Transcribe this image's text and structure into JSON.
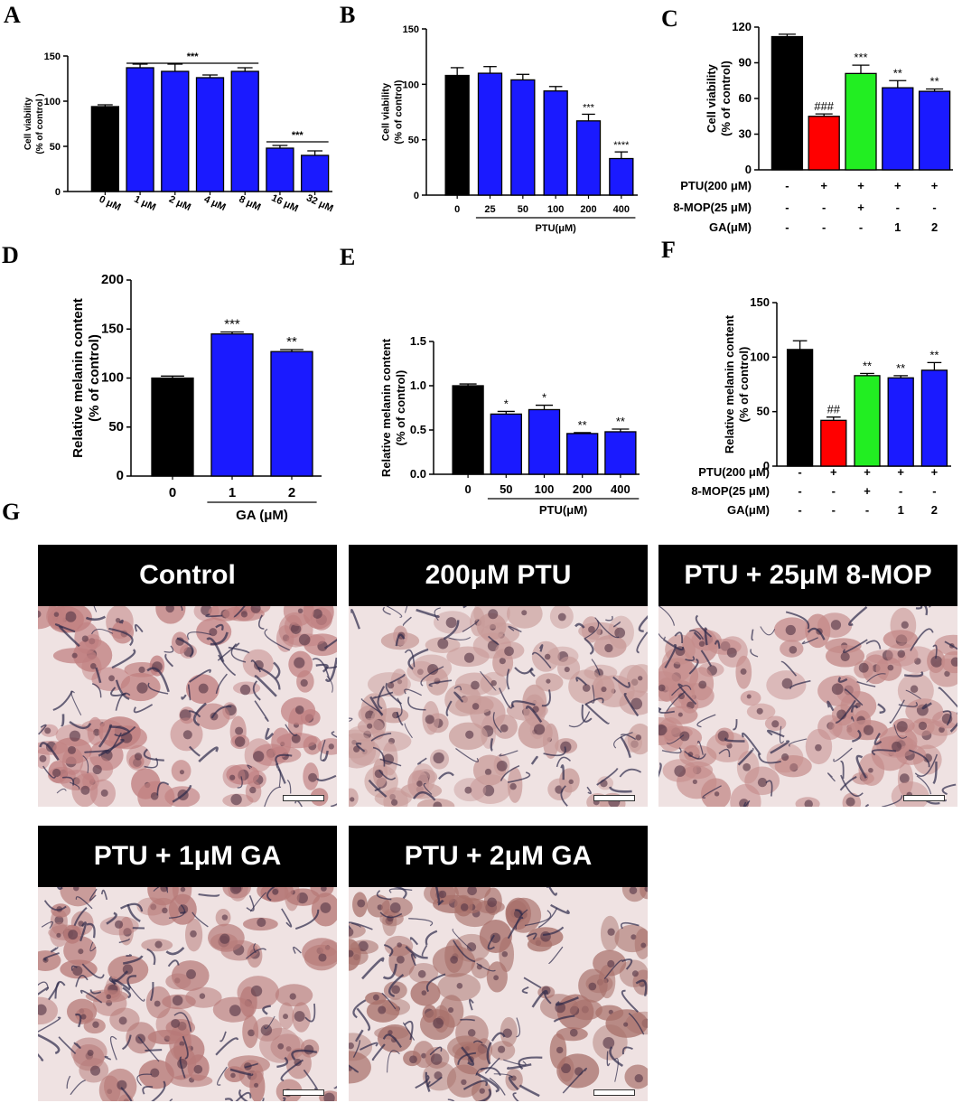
{
  "panel_letters": [
    "A",
    "B",
    "C",
    "D",
    "E",
    "F",
    "G"
  ],
  "colors": {
    "blue": "#1a1aff",
    "black": "#000000",
    "red": "#ff0000",
    "green": "#22ee22"
  },
  "chart_data": [
    {
      "id": "A",
      "type": "bar",
      "ylabel": "Cell viability\n(% of control )",
      "ylim": [
        0,
        150
      ],
      "yticks": [
        0,
        50,
        100,
        150
      ],
      "categories": [
        "0 μM",
        "1 μM",
        "2 μM",
        "4 μM",
        "8 μM",
        "16 μM",
        "32 μM"
      ],
      "values": [
        94,
        137,
        133,
        126,
        133,
        48,
        40
      ],
      "errors": [
        2,
        4,
        8,
        3,
        4,
        3,
        5
      ],
      "colors": [
        "black",
        "blue",
        "blue",
        "blue",
        "blue",
        "blue",
        "blue"
      ],
      "annotations": [
        {
          "text": "***",
          "from": 1,
          "to": 4,
          "value": 142
        },
        {
          "text": "***",
          "from": 5,
          "to": 6,
          "value": 55
        }
      ],
      "bar_labels": [
        "",
        "",
        "",
        "",
        "",
        "",
        ""
      ]
    },
    {
      "id": "B",
      "type": "bar",
      "ylabel": "Cell viability\n(% of control)",
      "ylim": [
        0,
        150
      ],
      "yticks": [
        0,
        50,
        100,
        150
      ],
      "categories": [
        "0",
        "25",
        "50",
        "100",
        "200",
        "400"
      ],
      "values": [
        108,
        110,
        104,
        94,
        67,
        33
      ],
      "errors": [
        7,
        6,
        5,
        4,
        6,
        6
      ],
      "colors": [
        "black",
        "blue",
        "blue",
        "blue",
        "blue",
        "blue"
      ],
      "bar_labels": [
        "",
        "",
        "",
        "",
        "***",
        "****"
      ],
      "group_label": "PTU(μM)",
      "group_from": 1,
      "group_to": 5
    },
    {
      "id": "C",
      "type": "bar",
      "ylabel": "Cell viability\n(% of control)",
      "ylim": [
        0,
        120
      ],
      "yticks": [
        0,
        30,
        60,
        90,
        120
      ],
      "categories": [
        "",
        "",
        "",
        "",
        ""
      ],
      "values": [
        112,
        45,
        81,
        69,
        66
      ],
      "errors": [
        2,
        2,
        7,
        6,
        2
      ],
      "colors": [
        "black",
        "red",
        "green",
        "blue",
        "blue"
      ],
      "bar_labels": [
        "",
        "###",
        "***",
        "**",
        "**"
      ],
      "table": [
        {
          "label": "PTU(200 μM)",
          "cells": [
            "-",
            "+",
            "+",
            "+",
            "+"
          ]
        },
        {
          "label": "8-MOP(25 μM)",
          "cells": [
            "-",
            "-",
            "+",
            "-",
            "-"
          ]
        },
        {
          "label": "GA(μM)",
          "cells": [
            "-",
            "-",
            "-",
            "1",
            "2"
          ]
        }
      ]
    },
    {
      "id": "D",
      "type": "bar",
      "ylabel": "Relative melanin content\n(% of control)",
      "ylim": [
        0,
        200
      ],
      "yticks": [
        0,
        50,
        100,
        150,
        200
      ],
      "categories": [
        "0",
        "1",
        "2"
      ],
      "values": [
        100,
        145,
        127
      ],
      "errors": [
        2,
        2,
        2
      ],
      "colors": [
        "black",
        "blue",
        "blue"
      ],
      "bar_labels": [
        "",
        "***",
        "**"
      ],
      "group_label": "GA (μM)",
      "group_from": 1,
      "group_to": 2
    },
    {
      "id": "E",
      "type": "bar",
      "ylabel": "Relative melanin content\n(% of control)",
      "ylim": [
        0,
        1.5
      ],
      "yticks": [
        "0.0",
        "0.5",
        "1.0",
        "1.5"
      ],
      "categories": [
        "0",
        "50",
        "100",
        "200",
        "400"
      ],
      "values": [
        1.0,
        0.68,
        0.73,
        0.46,
        0.48
      ],
      "errors": [
        0.02,
        0.03,
        0.05,
        0.01,
        0.03
      ],
      "colors": [
        "black",
        "blue",
        "blue",
        "blue",
        "blue"
      ],
      "bar_labels": [
        "",
        "*",
        "*",
        "**",
        "**"
      ],
      "group_label": "PTU(μM)",
      "group_from": 1,
      "group_to": 4
    },
    {
      "id": "F",
      "type": "bar",
      "ylabel": "Relative melanin content\n(% of control)",
      "ylim": [
        0,
        150
      ],
      "yticks": [
        0,
        50,
        100,
        150
      ],
      "categories": [
        "",
        "",
        "",
        "",
        ""
      ],
      "values": [
        107,
        42,
        83,
        81,
        88
      ],
      "errors": [
        8,
        3,
        2,
        2,
        7
      ],
      "colors": [
        "black",
        "red",
        "green",
        "blue",
        "blue"
      ],
      "bar_labels": [
        "",
        "##",
        "**",
        "**",
        "**"
      ],
      "table": [
        {
          "label": "PTU(200 μM)",
          "cells": [
            "-",
            "+",
            "+",
            "+",
            "+"
          ]
        },
        {
          "label": "8-MOP(25 μM)",
          "cells": [
            "-",
            "-",
            "+",
            "-",
            "-"
          ]
        },
        {
          "label": "GA(μM)",
          "cells": [
            "-",
            "-",
            "-",
            "1",
            "2"
          ]
        }
      ]
    }
  ],
  "micrographs": [
    {
      "title": "Control",
      "tint": "#c07f80"
    },
    {
      "title": "200μM PTU",
      "tint": "#c89a98"
    },
    {
      "title": "PTU + 25μM 8-MOP",
      "tint": "#c48a89"
    },
    {
      "title": "PTU + 1μM GA",
      "tint": "#b77a78"
    },
    {
      "title": "PTU + 2μM GA",
      "tint": "#a8706a"
    }
  ]
}
